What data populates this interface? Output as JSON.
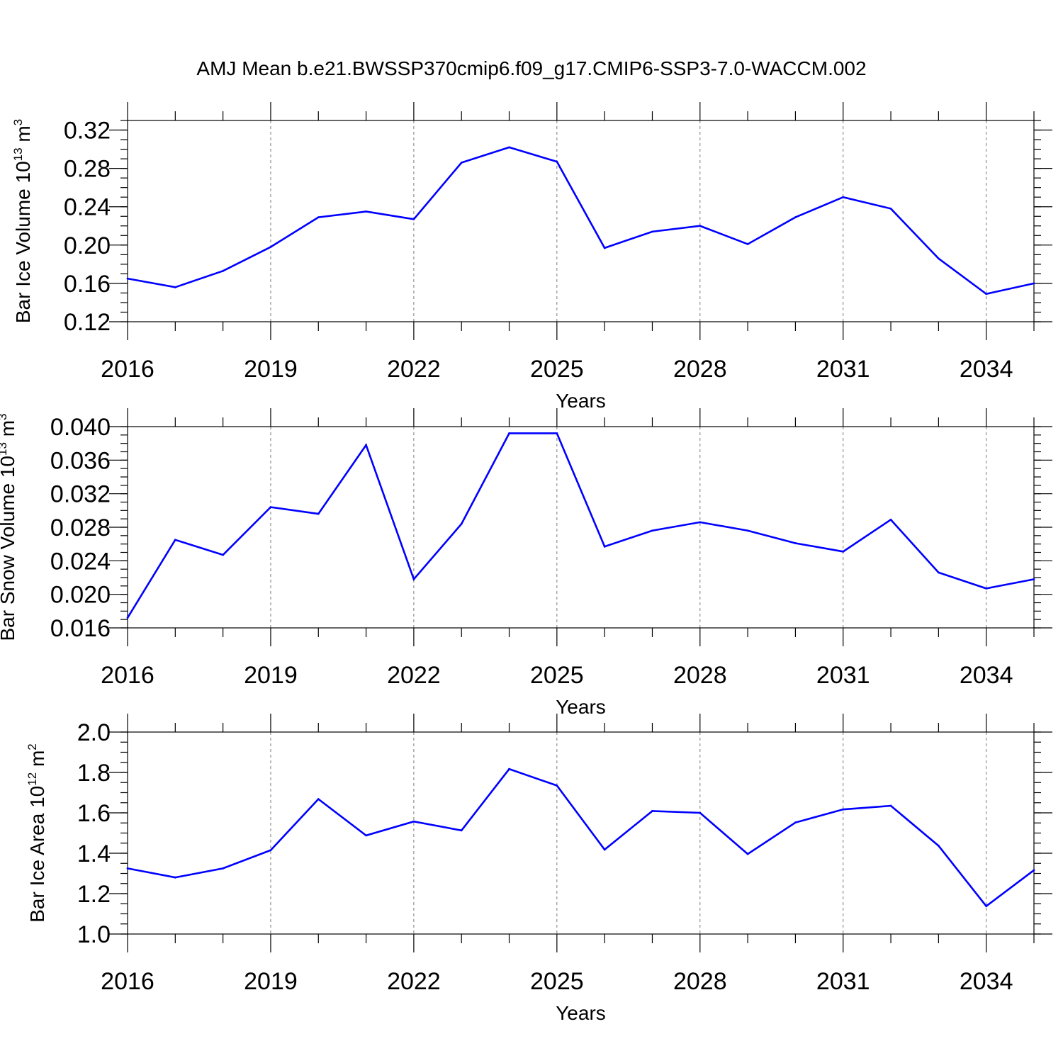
{
  "title": "AMJ Mean b.e21.BWSSP370cmip6.f09_g17.CMIP6-SSP3-7.0-WACCM.002",
  "colors": {
    "line": "#0000ff",
    "axis": "#000000",
    "grid": "#7a7a7a"
  },
  "chart_data": [
    {
      "type": "line",
      "title": "",
      "xlabel": "Years",
      "ylabel_text": "Bar Ice Volume 10",
      "ylabel_exp": "13",
      "ylabel_unit": " m",
      "ylabel_unit_exp": "3",
      "x": [
        2016,
        2017,
        2018,
        2019,
        2020,
        2021,
        2022,
        2023,
        2024,
        2025,
        2026,
        2027,
        2028,
        2029,
        2030,
        2031,
        2032,
        2033,
        2034,
        2035
      ],
      "values": [
        0.165,
        0.156,
        0.173,
        0.198,
        0.229,
        0.235,
        0.227,
        0.286,
        0.302,
        0.287,
        0.197,
        0.214,
        0.22,
        0.201,
        0.229,
        0.25,
        0.238,
        0.186,
        0.149,
        0.16
      ],
      "xlim": [
        2016,
        2035
      ],
      "ylim": [
        0.12,
        0.33
      ],
      "xticks": [
        2016,
        2019,
        2022,
        2025,
        2028,
        2031,
        2034
      ],
      "xtick_labels": [
        "2016",
        "2019",
        "2022",
        "2025",
        "2028",
        "2031",
        "2034"
      ],
      "yticks": [
        0.12,
        0.16,
        0.2,
        0.24,
        0.28,
        0.32
      ],
      "ytick_labels": [
        "0.12",
        "0.16",
        "0.20",
        "0.24",
        "0.28",
        "0.32"
      ],
      "minor_y_step": 0.01
    },
    {
      "type": "line",
      "title": "",
      "xlabel": "Years",
      "ylabel_text": "Bar Snow Volume 10",
      "ylabel_exp": "13",
      "ylabel_unit": " m",
      "ylabel_unit_exp": "3",
      "x": [
        2016,
        2017,
        2018,
        2019,
        2020,
        2021,
        2022,
        2023,
        2024,
        2025,
        2026,
        2027,
        2028,
        2029,
        2030,
        2031,
        2032,
        2033,
        2034,
        2035
      ],
      "values": [
        0.0172,
        0.0265,
        0.0247,
        0.0304,
        0.0296,
        0.0378,
        0.0218,
        0.0284,
        0.0392,
        0.0392,
        0.0257,
        0.0276,
        0.0286,
        0.0276,
        0.0261,
        0.0251,
        0.0289,
        0.0226,
        0.0207,
        0.0218
      ],
      "xlim": [
        2016,
        2035
      ],
      "ylim": [
        0.016,
        0.04
      ],
      "xticks": [
        2016,
        2019,
        2022,
        2025,
        2028,
        2031,
        2034
      ],
      "xtick_labels": [
        "2016",
        "2019",
        "2022",
        "2025",
        "2028",
        "2031",
        "2034"
      ],
      "yticks": [
        0.016,
        0.02,
        0.024,
        0.028,
        0.032,
        0.036,
        0.04
      ],
      "ytick_labels": [
        "0.016",
        "0.020",
        "0.024",
        "0.028",
        "0.032",
        "0.036",
        "0.040"
      ],
      "minor_y_step": 0.001
    },
    {
      "type": "line",
      "title": "",
      "xlabel": "Years",
      "ylabel_text": "Bar Ice Area 10",
      "ylabel_exp": "12",
      "ylabel_unit": " m",
      "ylabel_unit_exp": "2",
      "x": [
        2016,
        2017,
        2018,
        2019,
        2020,
        2021,
        2022,
        2023,
        2024,
        2025,
        2026,
        2027,
        2028,
        2029,
        2030,
        2031,
        2032,
        2033,
        2034,
        2035
      ],
      "values": [
        1.325,
        1.28,
        1.325,
        1.415,
        1.668,
        1.488,
        1.557,
        1.513,
        1.817,
        1.735,
        1.418,
        1.609,
        1.6,
        1.396,
        1.552,
        1.617,
        1.635,
        1.437,
        1.138,
        1.316
      ],
      "xlim": [
        2016,
        2035
      ],
      "ylim": [
        1.0,
        2.0
      ],
      "xticks": [
        2016,
        2019,
        2022,
        2025,
        2028,
        2031,
        2034
      ],
      "xtick_labels": [
        "2016",
        "2019",
        "2022",
        "2025",
        "2028",
        "2031",
        "2034"
      ],
      "yticks": [
        1.0,
        1.2,
        1.4,
        1.6,
        1.8,
        2.0
      ],
      "ytick_labels": [
        "1.0",
        "1.2",
        "1.4",
        "1.6",
        "1.8",
        "2.0"
      ],
      "minor_y_step": 0.05
    }
  ]
}
